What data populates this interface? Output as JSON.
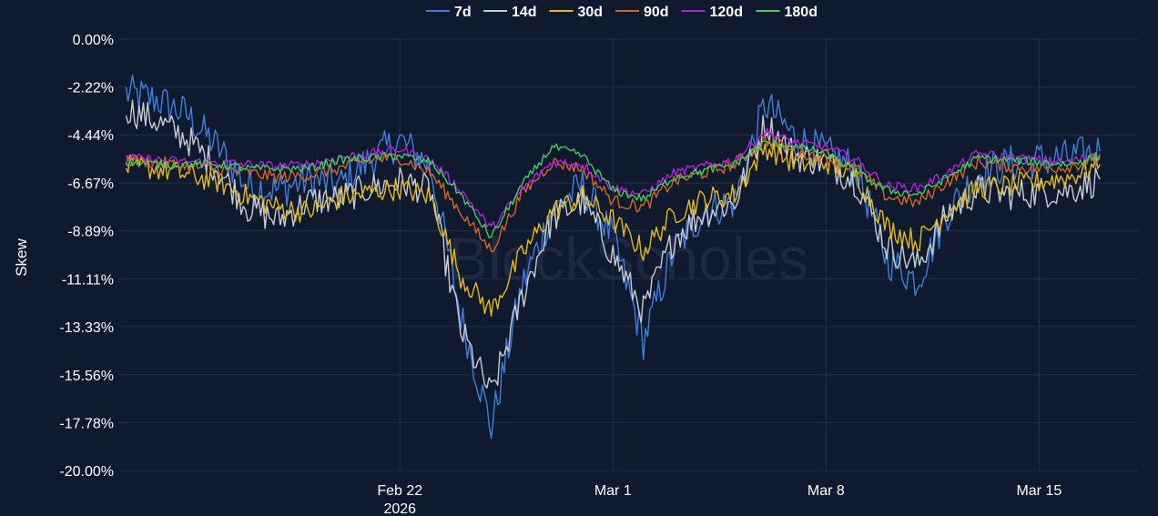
{
  "chart_data": {
    "type": "line",
    "ylabel": "Skew",
    "watermark": "BlockScholes",
    "ylim": [
      -20.0,
      0.0
    ],
    "yticks": [
      "0.00%",
      "-2.22%",
      "-4.44%",
      "-6.67%",
      "-8.89%",
      "-11.11%",
      "-13.33%",
      "-15.56%",
      "-17.78%",
      "-20.00%"
    ],
    "ytick_values": [
      0.0,
      -2.22,
      -4.44,
      -6.67,
      -8.89,
      -11.11,
      -13.33,
      -15.56,
      -17.78,
      -20.0
    ],
    "xlim": [
      "2026-02-12T18:00",
      "2026-03-18T06:00"
    ],
    "xticks": [
      {
        "date": "2026-02-22",
        "label": "Feb 22",
        "sublabel": "2026"
      },
      {
        "date": "2026-03-01",
        "label": "Mar 1",
        "sublabel": ""
      },
      {
        "date": "2026-03-08",
        "label": "Mar 8",
        "sublabel": ""
      },
      {
        "date": "2026-03-15",
        "label": "Mar 15",
        "sublabel": ""
      }
    ],
    "grid": true,
    "legend_position": "top-center",
    "series": [
      {
        "name": "7d",
        "color": "#3d7fe0",
        "x": [
          "2026-02-13",
          "2026-02-14",
          "2026-02-15",
          "2026-02-16",
          "2026-02-17",
          "2026-02-18",
          "2026-02-19",
          "2026-02-20",
          "2026-02-21",
          "2026-02-22",
          "2026-02-23",
          "2026-02-24",
          "2026-02-25",
          "2026-02-26",
          "2026-02-27",
          "2026-02-28",
          "2026-03-01",
          "2026-03-02",
          "2026-03-03",
          "2026-03-04",
          "2026-03-05",
          "2026-03-06",
          "2026-03-07",
          "2026-03-08",
          "2026-03-09",
          "2026-03-10",
          "2026-03-11",
          "2026-03-12",
          "2026-03-13",
          "2026-03-14",
          "2026-03-15",
          "2026-03-16",
          "2026-03-17"
        ],
        "y": [
          -2.5,
          -2.8,
          -3.5,
          -5.0,
          -6.8,
          -7.0,
          -6.5,
          -6.8,
          -5.6,
          -4.7,
          -5.9,
          -12.8,
          -18.0,
          -11.5,
          -8.0,
          -6.8,
          -9.2,
          -14.0,
          -9.8,
          -8.0,
          -7.5,
          -3.0,
          -4.6,
          -5.3,
          -6.0,
          -10.2,
          -11.2,
          -8.0,
          -6.2,
          -5.8,
          -5.6,
          -5.5,
          -5.2
        ]
      },
      {
        "name": "14d",
        "color": "#c8ccd4",
        "x": [
          "2026-02-13",
          "2026-02-14",
          "2026-02-15",
          "2026-02-16",
          "2026-02-17",
          "2026-02-18",
          "2026-02-19",
          "2026-02-20",
          "2026-02-21",
          "2026-02-22",
          "2026-02-23",
          "2026-02-24",
          "2026-02-25",
          "2026-02-26",
          "2026-02-27",
          "2026-02-28",
          "2026-03-01",
          "2026-03-02",
          "2026-03-03",
          "2026-03-04",
          "2026-03-05",
          "2026-03-06",
          "2026-03-07",
          "2026-03-08",
          "2026-03-09",
          "2026-03-10",
          "2026-03-11",
          "2026-03-12",
          "2026-03-13",
          "2026-03-14",
          "2026-03-15",
          "2026-03-16",
          "2026-03-17"
        ],
        "y": [
          -3.2,
          -3.8,
          -4.6,
          -6.0,
          -7.8,
          -8.4,
          -7.5,
          -7.4,
          -6.9,
          -6.6,
          -7.0,
          -13.5,
          -16.5,
          -12.0,
          -8.3,
          -7.5,
          -10.0,
          -12.6,
          -9.2,
          -8.0,
          -7.6,
          -3.9,
          -5.4,
          -5.7,
          -6.6,
          -9.6,
          -10.5,
          -8.1,
          -7.0,
          -7.2,
          -7.1,
          -7.0,
          -6.5
        ]
      },
      {
        "name": "30d",
        "color": "#e8b818",
        "x": [
          "2026-02-13",
          "2026-02-14",
          "2026-02-15",
          "2026-02-16",
          "2026-02-17",
          "2026-02-18",
          "2026-02-19",
          "2026-02-20",
          "2026-02-21",
          "2026-02-22",
          "2026-02-23",
          "2026-02-24",
          "2026-02-25",
          "2026-02-26",
          "2026-02-27",
          "2026-02-28",
          "2026-03-01",
          "2026-03-02",
          "2026-03-03",
          "2026-03-04",
          "2026-03-05",
          "2026-03-06",
          "2026-03-07",
          "2026-03-08",
          "2026-03-09",
          "2026-03-10",
          "2026-03-11",
          "2026-03-12",
          "2026-03-13",
          "2026-03-14",
          "2026-03-15",
          "2026-03-16",
          "2026-03-17"
        ],
        "y": [
          -5.9,
          -6.0,
          -6.3,
          -6.6,
          -7.3,
          -7.8,
          -8.0,
          -7.4,
          -7.1,
          -6.9,
          -7.3,
          -11.0,
          -12.6,
          -10.0,
          -8.0,
          -7.3,
          -8.4,
          -9.8,
          -8.1,
          -7.4,
          -7.2,
          -5.0,
          -5.8,
          -5.7,
          -6.3,
          -8.7,
          -9.4,
          -7.9,
          -6.9,
          -6.8,
          -6.6,
          -6.4,
          -5.8
        ]
      },
      {
        "name": "90d",
        "color": "#d96420",
        "x": [
          "2026-02-13",
          "2026-02-14",
          "2026-02-15",
          "2026-02-16",
          "2026-02-17",
          "2026-02-18",
          "2026-02-19",
          "2026-02-20",
          "2026-02-21",
          "2026-02-22",
          "2026-02-23",
          "2026-02-24",
          "2026-02-25",
          "2026-02-26",
          "2026-02-27",
          "2026-02-28",
          "2026-03-01",
          "2026-03-02",
          "2026-03-03",
          "2026-03-04",
          "2026-03-05",
          "2026-03-06",
          "2026-03-07",
          "2026-03-08",
          "2026-03-09",
          "2026-03-10",
          "2026-03-11",
          "2026-03-12",
          "2026-03-13",
          "2026-03-14",
          "2026-03-15",
          "2026-03-16",
          "2026-03-17"
        ],
        "y": [
          -5.6,
          -5.7,
          -5.9,
          -6.0,
          -6.2,
          -6.4,
          -6.3,
          -6.0,
          -5.6,
          -5.5,
          -6.2,
          -8.0,
          -9.8,
          -7.2,
          -5.7,
          -6.0,
          -7.5,
          -7.8,
          -6.6,
          -6.2,
          -5.8,
          -4.7,
          -5.2,
          -5.5,
          -6.0,
          -7.3,
          -7.6,
          -6.6,
          -5.7,
          -5.9,
          -6.0,
          -5.9,
          -5.5
        ]
      },
      {
        "name": "120d",
        "color": "#b91ce0",
        "x": [
          "2026-02-13",
          "2026-02-14",
          "2026-02-15",
          "2026-02-16",
          "2026-02-17",
          "2026-02-18",
          "2026-02-19",
          "2026-02-20",
          "2026-02-21",
          "2026-02-22",
          "2026-02-23",
          "2026-02-24",
          "2026-02-25",
          "2026-02-26",
          "2026-02-27",
          "2026-02-28",
          "2026-03-01",
          "2026-03-02",
          "2026-03-03",
          "2026-03-04",
          "2026-03-05",
          "2026-03-06",
          "2026-03-07",
          "2026-03-08",
          "2026-03-09",
          "2026-03-10",
          "2026-03-11",
          "2026-03-12",
          "2026-03-13",
          "2026-03-14",
          "2026-03-15",
          "2026-03-16",
          "2026-03-17"
        ],
        "y": [
          -5.5,
          -5.6,
          -5.7,
          -5.7,
          -5.8,
          -5.9,
          -5.8,
          -5.5,
          -5.3,
          -5.1,
          -5.6,
          -7.0,
          -8.8,
          -7.0,
          -5.7,
          -5.8,
          -6.9,
          -7.2,
          -6.2,
          -5.9,
          -5.6,
          -4.3,
          -4.8,
          -5.0,
          -5.6,
          -6.8,
          -6.9,
          -6.2,
          -5.3,
          -5.5,
          -5.6,
          -5.7,
          -5.3
        ]
      },
      {
        "name": "180d",
        "color": "#3ad15a",
        "x": [
          "2026-02-13",
          "2026-02-14",
          "2026-02-15",
          "2026-02-16",
          "2026-02-17",
          "2026-02-18",
          "2026-02-19",
          "2026-02-20",
          "2026-02-21",
          "2026-02-22",
          "2026-02-23",
          "2026-02-24",
          "2026-02-25",
          "2026-02-26",
          "2026-02-27",
          "2026-02-28",
          "2026-03-01",
          "2026-03-02",
          "2026-03-03",
          "2026-03-04",
          "2026-03-05",
          "2026-03-06",
          "2026-03-07",
          "2026-03-08",
          "2026-03-09",
          "2026-03-10",
          "2026-03-11",
          "2026-03-12",
          "2026-03-13",
          "2026-03-14",
          "2026-03-15",
          "2026-03-16",
          "2026-03-17"
        ],
        "y": [
          -5.7,
          -5.8,
          -5.8,
          -5.8,
          -6.0,
          -6.0,
          -6.0,
          -5.6,
          -5.5,
          -5.4,
          -5.7,
          -7.2,
          -9.2,
          -6.8,
          -5.0,
          -5.4,
          -7.0,
          -7.4,
          -6.4,
          -6.1,
          -5.8,
          -4.8,
          -5.0,
          -5.3,
          -6.2,
          -7.0,
          -7.2,
          -6.4,
          -5.5,
          -5.6,
          -5.7,
          -5.8,
          -5.4
        ]
      }
    ]
  },
  "colors": {
    "background": "#0f1a2e",
    "grid": "#1f2f4d",
    "text": "#ffffff",
    "watermark": "#233047"
  }
}
